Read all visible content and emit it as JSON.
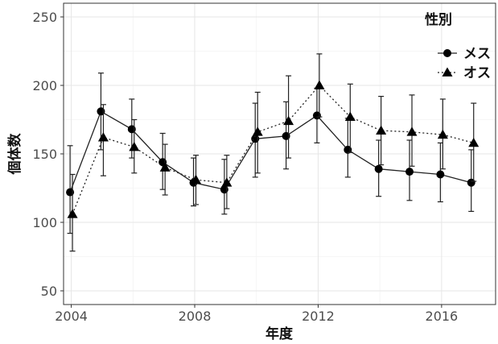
{
  "chart_data": {
    "type": "line",
    "title": "",
    "xlabel": "年度",
    "ylabel": "個体数",
    "xlim": [
      2003.75,
      2017.75
    ],
    "ylim": [
      40,
      260
    ],
    "x_ticks": [
      2004,
      2008,
      2012,
      2016
    ],
    "y_ticks": [
      50,
      100,
      150,
      200,
      250
    ],
    "grid": true,
    "legend": {
      "title": "性別",
      "position": "top-right"
    },
    "series": [
      {
        "name": "メス",
        "marker": "circle",
        "line_style": "solid",
        "x": [
          2004,
          2005,
          2006,
          2007,
          2008,
          2009,
          2010,
          2011,
          2012,
          2013,
          2014,
          2015,
          2016,
          2017
        ],
        "y": [
          122,
          181,
          168,
          144,
          129,
          124,
          161,
          163,
          178,
          153,
          139,
          137,
          135,
          129
        ],
        "err_low": [
          92,
          153,
          147,
          124,
          112,
          106,
          133,
          139,
          158,
          133,
          119,
          116,
          115,
          108
        ],
        "err_high": [
          156,
          209,
          190,
          165,
          147,
          146,
          187,
          188,
          198,
          176,
          160,
          160,
          158,
          153
        ]
      },
      {
        "name": "オス",
        "marker": "triangle",
        "line_style": "dotted",
        "x": [
          2004,
          2005,
          2006,
          2007,
          2008,
          2009,
          2010,
          2011,
          2012,
          2013,
          2014,
          2015,
          2016,
          2017
        ],
        "y": [
          106,
          162,
          155,
          140,
          131,
          129,
          166,
          174,
          200,
          177,
          167,
          166,
          164,
          158
        ],
        "err_low": [
          79,
          134,
          136,
          120,
          113,
          110,
          136,
          147,
          177,
          151,
          142,
          141,
          139,
          130
        ],
        "err_high": [
          135,
          186,
          175,
          157,
          149,
          149,
          195,
          207,
          223,
          201,
          192,
          193,
          190,
          187
        ]
      }
    ]
  }
}
